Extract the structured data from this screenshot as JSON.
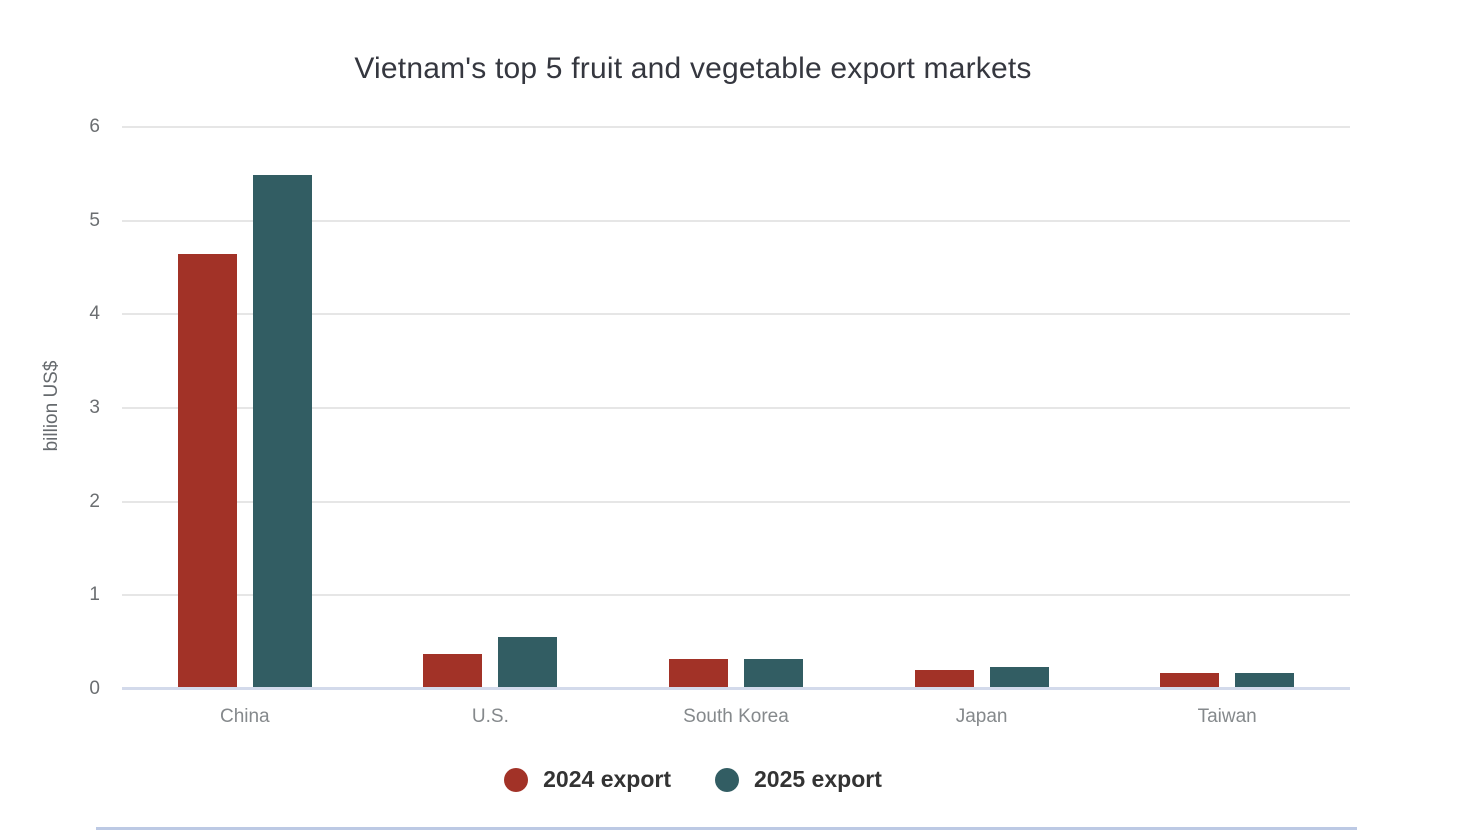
{
  "title": "Vietnam's top 5 fruit and vegetable export markets",
  "y_axis": {
    "title": "billion US$",
    "tick_labels": [
      "0",
      "1",
      "2",
      "3",
      "4",
      "5",
      "6"
    ],
    "min": 0,
    "max": 6
  },
  "x_axis": {
    "categories": [
      "China",
      "U.S.",
      "South Korea",
      "Japan",
      "Taiwan"
    ]
  },
  "legend": {
    "items": [
      {
        "label": "2024 export",
        "color": "#A23227"
      },
      {
        "label": "2025 export",
        "color": "#325D63"
      }
    ]
  },
  "colors": {
    "bar_2024": "#A23227",
    "bar_2025": "#325D63",
    "gridline": "#E6E6E6",
    "axis_line": "#D3DAEB",
    "title_text": "#35373F",
    "tick_text": "#6B6E71",
    "category_text": "#85898C",
    "legend_text": "#333333",
    "page_divider": "#BCC9E4"
  },
  "chart_data": {
    "type": "bar",
    "title": "Vietnam's top 5 fruit and vegetable export markets",
    "xlabel": "",
    "ylabel": "billion US$",
    "ylim": [
      0,
      6
    ],
    "grid": true,
    "legend_position": "bottom",
    "categories": [
      "China",
      "U.S.",
      "South Korea",
      "Japan",
      "Taiwan"
    ],
    "series": [
      {
        "name": "2024 export",
        "color": "#A23227",
        "values": [
          4.62,
          0.35,
          0.3,
          0.18,
          0.15
        ]
      },
      {
        "name": "2025 export",
        "color": "#325D63",
        "values": [
          5.47,
          0.53,
          0.3,
          0.21,
          0.15
        ]
      }
    ]
  }
}
